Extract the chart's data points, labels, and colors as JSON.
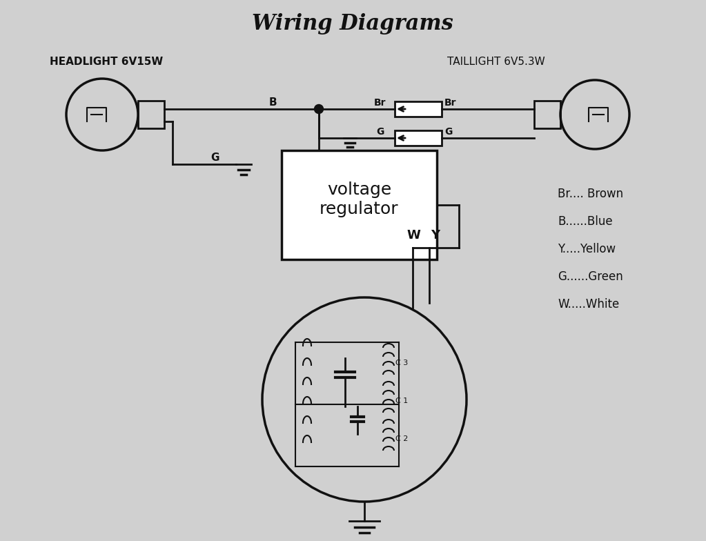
{
  "title": "Wiring Diagrams",
  "bg_color": "#d0d0d0",
  "line_color": "#111111",
  "headlight_label": "HEADLIGHT 6V15W",
  "taillight_label": "TAILLIGHT 6V5.3W",
  "legend": [
    "Br.... Brown",
    "B......Blue",
    "Y.....Yellow",
    "G......Green",
    "W.....White"
  ],
  "voltage_regulator_text": "voltage\nregulator",
  "coil_labels": [
    "C 3",
    "C 1",
    "C 2"
  ]
}
